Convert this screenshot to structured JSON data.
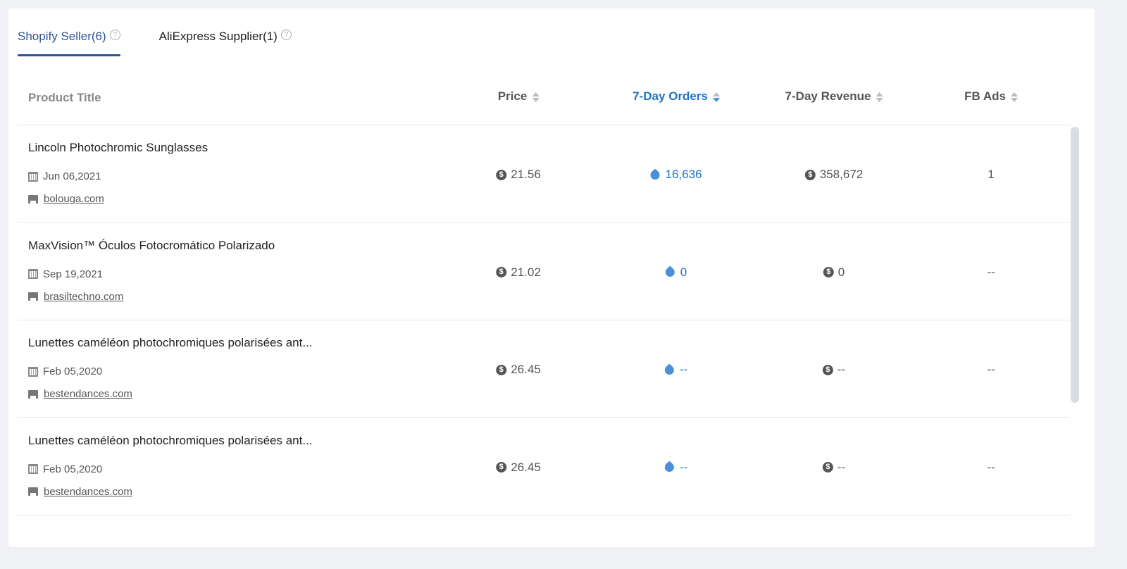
{
  "tabs": [
    {
      "label": "Shopify Seller(6)",
      "active": true
    },
    {
      "label": "AliExpress Supplier(1)",
      "active": false
    }
  ],
  "columns": {
    "title": "Product Title",
    "price": "Price",
    "orders": "7-Day Orders",
    "revenue": "7-Day Revenue",
    "fbads": "FB Ads"
  },
  "sorted_column": "7-Day Orders",
  "colors": {
    "accent": "#1e74c8",
    "tab_active": "#2f5597"
  },
  "rows": [
    {
      "title": "Lincoln Photochromic Sunglasses",
      "date": "Jun 06,2021",
      "shop": "bolouga.com",
      "price": "21.56",
      "orders": "16,636",
      "revenue": "358,672",
      "fbads": "1"
    },
    {
      "title": "MaxVision™ Óculos Fotocromático Polarizado",
      "date": "Sep 19,2021",
      "shop": "brasiltechno.com",
      "price": "21.02",
      "orders": "0",
      "revenue": "0",
      "fbads": "--"
    },
    {
      "title": "Lunettes caméléon photochromiques polarisées ant...",
      "date": "Feb 05,2020",
      "shop": "bestendances.com",
      "price": "26.45",
      "orders": "--",
      "revenue": "--",
      "fbads": "--"
    },
    {
      "title": "Lunettes caméléon photochromiques polarisées ant...",
      "date": "Feb 05,2020",
      "shop": "bestendances.com",
      "price": "26.45",
      "orders": "--",
      "revenue": "--",
      "fbads": "--"
    }
  ]
}
